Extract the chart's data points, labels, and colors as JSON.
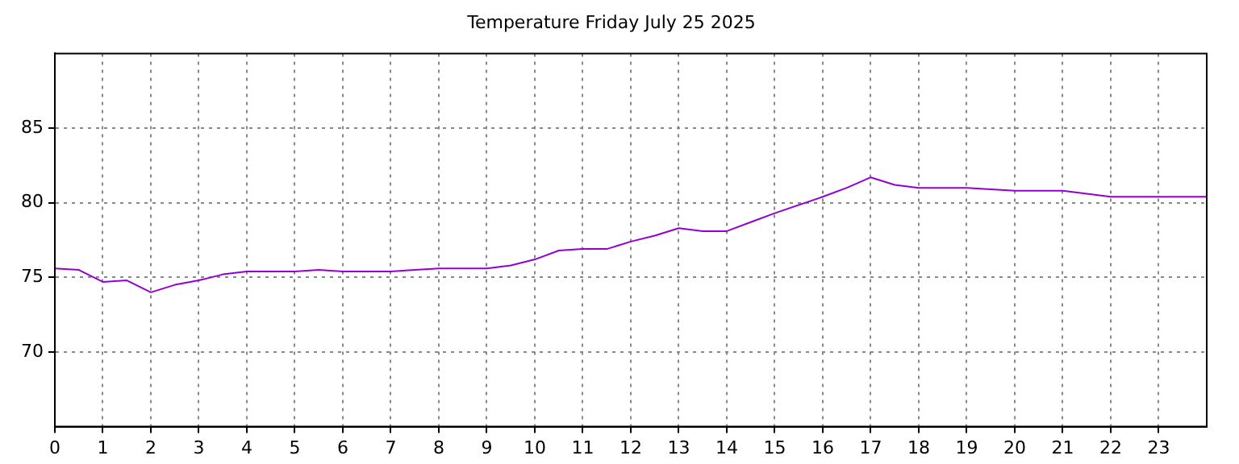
{
  "chart_data": {
    "type": "line",
    "title": "Temperature Friday July 25 2025",
    "x": [
      0,
      0.5,
      1,
      1.5,
      2,
      2.5,
      3,
      3.5,
      4,
      5,
      5.5,
      6,
      7,
      7.5,
      8,
      9,
      9.5,
      10,
      10.5,
      11,
      11.5,
      12,
      12.5,
      13,
      13.5,
      14,
      14.5,
      15,
      16,
      16.5,
      17,
      17.5,
      18,
      19,
      20,
      21,
      21.5,
      22,
      23,
      24
    ],
    "series": [
      {
        "color": "#9400d3",
        "values": [
          75.6,
          75.5,
          74.7,
          74.8,
          74.0,
          74.5,
          74.8,
          75.2,
          75.4,
          75.4,
          75.5,
          75.4,
          75.4,
          75.5,
          75.6,
          75.6,
          75.8,
          76.2,
          76.8,
          76.9,
          76.9,
          77.4,
          77.8,
          78.3,
          78.1,
          78.1,
          78.7,
          79.3,
          80.4,
          81.0,
          81.7,
          81.2,
          81.0,
          81.0,
          80.8,
          80.8,
          80.6,
          80.4,
          80.4,
          80.4
        ]
      }
    ],
    "xlim": [
      0,
      24
    ],
    "xticks": [
      0,
      1,
      2,
      3,
      4,
      5,
      6,
      7,
      8,
      9,
      10,
      11,
      12,
      13,
      14,
      15,
      16,
      17,
      18,
      19,
      20,
      21,
      22,
      23
    ],
    "ylim": [
      65,
      90
    ],
    "yticks": [
      70,
      75,
      80,
      85
    ],
    "grid": true,
    "legend": false,
    "marker": "none",
    "line_style": "solid"
  }
}
